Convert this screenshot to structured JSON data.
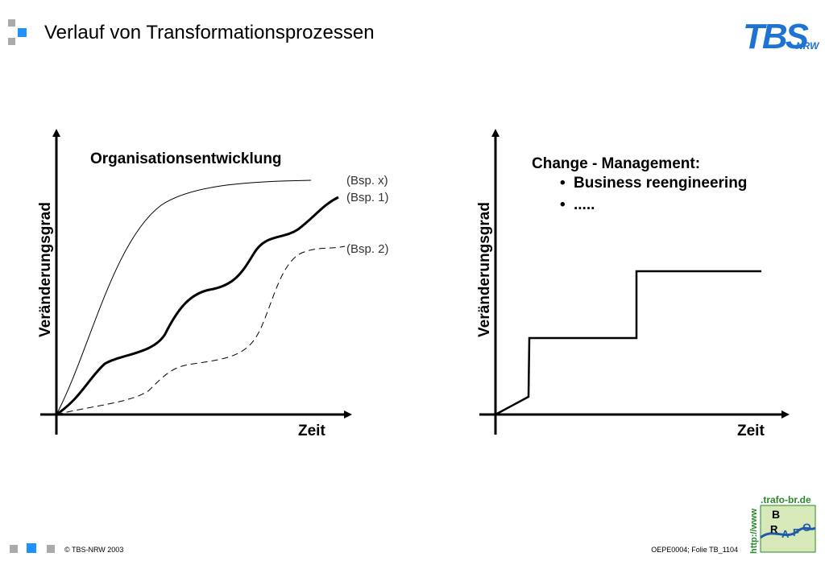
{
  "header": {
    "title": "Verlauf von Transformationsprozessen",
    "logo": {
      "main": "TBS",
      "sub": "NRW"
    }
  },
  "diagrams": [
    {
      "title": "Organisationsentwicklung",
      "y_label": "Veränderungsgrad",
      "x_label": "Zeit",
      "curves": [
        {
          "label": "(Bsp. x)"
        },
        {
          "label": "(Bsp. 1)"
        },
        {
          "label": "(Bsp. 2)"
        }
      ]
    },
    {
      "title": "Change - Management:",
      "y_label": "Veränderungsgrad",
      "x_label": "Zeit",
      "bullets": [
        "Business reengineering",
        "....."
      ]
    }
  ],
  "footer": {
    "copyright": "© TBS-NRW 2003",
    "slide_id": "OEPE0004; Folie TB_1104",
    "logo": {
      "url": ".trafo-br.de",
      "prefix": "http://www",
      "letters": [
        "B",
        "R",
        "A",
        "F",
        "O"
      ]
    }
  }
}
